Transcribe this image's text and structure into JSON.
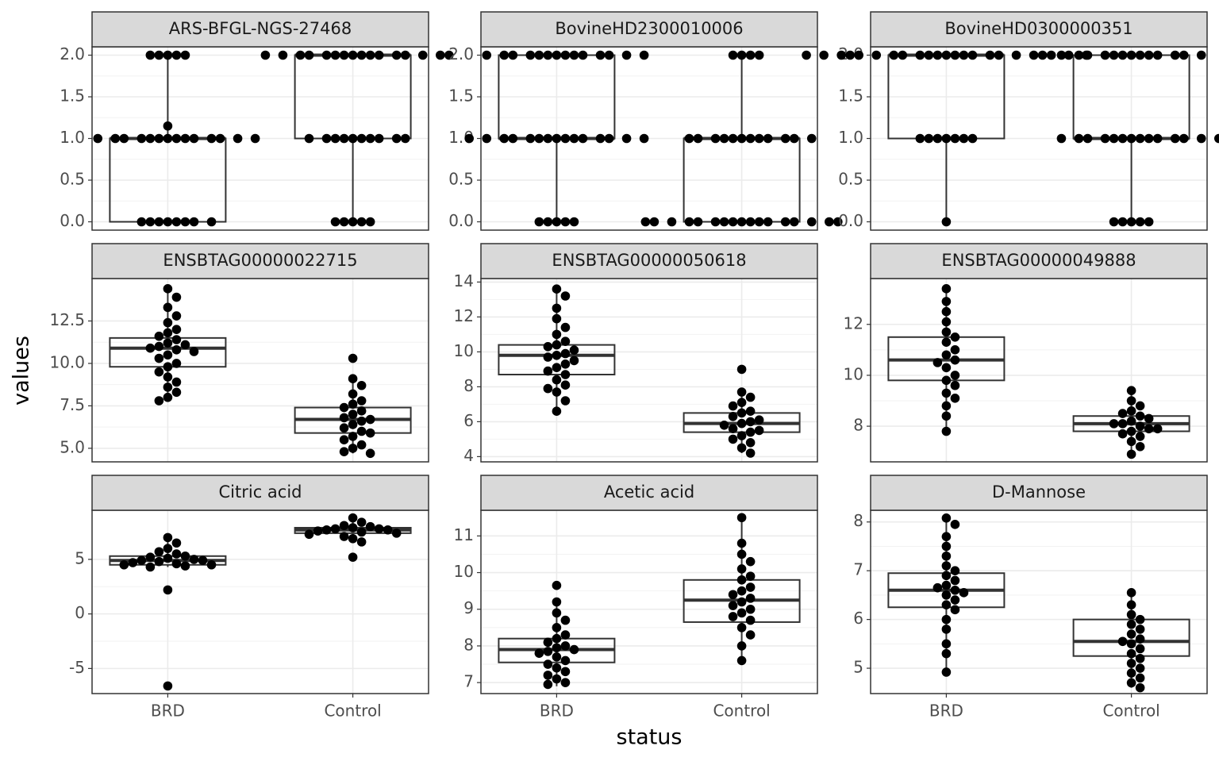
{
  "chart_data": {
    "type": "box",
    "x_label": "status",
    "y_label": "values",
    "categories": [
      "BRD",
      "Control"
    ],
    "facets": [
      {
        "title": "ARS-BFGL-NGS-27468",
        "ylim": [
          -0.1,
          2.1
        ],
        "yticks": [
          {
            "value": 0,
            "label": "0.0"
          },
          {
            "value": 0.5,
            "label": "0.5"
          },
          {
            "value": 1,
            "label": "1.0"
          },
          {
            "value": 1.5,
            "label": "1.5"
          },
          {
            "value": 2,
            "label": "2.0"
          }
        ],
        "boxes": [
          {
            "min": 0,
            "q1": 0,
            "median": 1,
            "q3": 1,
            "max": 2
          },
          {
            "min": 0,
            "q1": 1,
            "median": 2,
            "q3": 2,
            "max": 2
          }
        ],
        "points": [
          [
            2,
            2,
            2,
            2,
            2,
            1.15,
            1,
            1,
            1,
            1,
            1,
            1,
            1,
            1,
            1,
            1,
            1,
            1,
            1,
            1,
            0,
            0,
            0,
            0,
            0,
            0,
            0,
            0
          ],
          [
            2,
            2,
            2,
            2,
            2,
            2,
            2,
            2,
            2,
            2,
            2,
            2,
            2,
            2,
            2,
            2,
            1,
            1,
            1,
            1,
            1,
            1,
            1,
            1,
            1,
            1,
            0,
            0,
            0,
            0,
            0
          ]
        ]
      },
      {
        "title": "BovineHD2300010006",
        "ylim": [
          -0.1,
          2.1
        ],
        "yticks": [
          {
            "value": 0,
            "label": "0.0"
          },
          {
            "value": 0.5,
            "label": "0.5"
          },
          {
            "value": 1,
            "label": "1.0"
          },
          {
            "value": 1.5,
            "label": "1.5"
          },
          {
            "value": 2,
            "label": "2.0"
          }
        ],
        "boxes": [
          {
            "min": 0,
            "q1": 1,
            "median": 1,
            "q3": 2,
            "max": 2
          },
          {
            "min": 0,
            "q1": 0,
            "median": 1,
            "q3": 1,
            "max": 2
          }
        ],
        "points": [
          [
            2,
            2,
            2,
            2,
            2,
            2,
            2,
            2,
            2,
            2,
            2,
            2,
            2,
            2,
            1,
            1,
            1,
            1,
            1,
            1,
            1,
            1,
            1,
            1,
            1,
            1,
            1,
            1,
            1,
            0,
            0,
            0,
            0,
            0
          ],
          [
            2,
            2,
            2,
            2,
            1,
            1,
            1,
            1,
            1,
            1,
            1,
            1,
            1,
            1,
            1,
            1,
            0,
            0,
            0,
            0,
            0,
            0,
            0,
            0,
            0,
            0,
            0,
            0,
            0,
            0,
            0,
            0,
            0
          ]
        ]
      },
      {
        "title": "BovineHD0300000351",
        "ylim": [
          -0.1,
          2.1
        ],
        "yticks": [
          {
            "value": 0,
            "label": "0.0"
          },
          {
            "value": 0.5,
            "label": "0.5"
          },
          {
            "value": 1,
            "label": "1.0"
          },
          {
            "value": 1.5,
            "label": "1.5"
          },
          {
            "value": 2,
            "label": "2.0"
          }
        ],
        "boxes": [
          {
            "min": 0,
            "q1": 1,
            "median": 2,
            "q3": 2,
            "max": 2
          },
          {
            "min": 0,
            "q1": 1,
            "median": 1,
            "q3": 2,
            "max": 2
          }
        ],
        "points": [
          [
            2,
            2,
            2,
            2,
            2,
            2,
            2,
            2,
            2,
            2,
            2,
            2,
            2,
            2,
            2,
            2,
            2,
            2,
            2,
            2,
            2,
            2,
            2,
            1,
            1,
            1,
            1,
            1,
            1,
            1,
            0
          ],
          [
            2,
            2,
            2,
            2,
            2,
            2,
            2,
            2,
            2,
            2,
            2,
            2,
            2,
            1,
            1,
            1,
            1,
            1,
            1,
            1,
            1,
            1,
            1,
            1,
            1,
            1,
            1,
            0,
            0,
            0,
            0,
            0
          ]
        ]
      },
      {
        "title": "ENSBTAG00000022715",
        "ylim": [
          4.2,
          15.0
        ],
        "yticks": [
          {
            "value": 5,
            "label": "5.0"
          },
          {
            "value": 7.5,
            "label": "7.5"
          },
          {
            "value": 10,
            "label": "10.0"
          },
          {
            "value": 12.5,
            "label": "12.5"
          }
        ],
        "boxes": [
          {
            "min": 7.8,
            "q1": 9.8,
            "median": 10.9,
            "q3": 11.5,
            "max": 14.4
          },
          {
            "min": 4.7,
            "q1": 5.9,
            "median": 6.7,
            "q3": 7.4,
            "max": 9.1
          }
        ],
        "points": [
          [
            14.4,
            13.9,
            13.3,
            12.8,
            12.4,
            12.0,
            11.8,
            11.6,
            11.4,
            11.2,
            11.1,
            11.0,
            10.9,
            10.8,
            10.7,
            10.5,
            10.3,
            10.0,
            9.8,
            9.5,
            9.2,
            8.9,
            8.6,
            8.3,
            8.0,
            7.8
          ],
          [
            10.3,
            9.1,
            8.7,
            8.2,
            7.8,
            7.6,
            7.4,
            7.2,
            7.0,
            6.8,
            6.7,
            6.6,
            6.4,
            6.2,
            6.0,
            5.9,
            5.7,
            5.5,
            5.2,
            5.0,
            4.8,
            4.7
          ]
        ]
      },
      {
        "title": "ENSBTAG00000050618",
        "ylim": [
          3.7,
          14.2
        ],
        "yticks": [
          4,
          6,
          8,
          10,
          12,
          14
        ],
        "boxes": [
          {
            "min": 6.6,
            "q1": 8.7,
            "median": 9.8,
            "q3": 10.4,
            "max": 13.6
          },
          {
            "min": 4.2,
            "q1": 5.4,
            "median": 5.9,
            "q3": 6.5,
            "max": 7.7
          }
        ],
        "points": [
          [
            13.6,
            13.2,
            12.5,
            11.9,
            11.4,
            11.0,
            10.6,
            10.4,
            10.3,
            10.1,
            9.9,
            9.8,
            9.7,
            9.5,
            9.3,
            9.1,
            8.9,
            8.7,
            8.4,
            8.1,
            7.9,
            7.7,
            7.2,
            6.6
          ],
          [
            9.0,
            7.7,
            7.4,
            7.1,
            6.9,
            6.6,
            6.5,
            6.3,
            6.1,
            6.0,
            5.9,
            5.8,
            5.6,
            5.5,
            5.4,
            5.2,
            5.0,
            4.8,
            4.5,
            4.2
          ]
        ]
      },
      {
        "title": "ENSBTAG00000049888",
        "ylim": [
          6.6,
          13.8
        ],
        "yticks": [
          8,
          10,
          12
        ],
        "boxes": [
          {
            "min": 7.8,
            "q1": 9.8,
            "median": 10.6,
            "q3": 11.5,
            "max": 13.4
          },
          {
            "min": 6.9,
            "q1": 7.8,
            "median": 8.1,
            "q3": 8.4,
            "max": 9.4
          }
        ],
        "points": [
          [
            13.4,
            12.9,
            12.5,
            12.1,
            11.7,
            11.5,
            11.3,
            11.0,
            10.8,
            10.6,
            10.5,
            10.3,
            10.0,
            9.8,
            9.6,
            9.3,
            9.1,
            8.8,
            8.4,
            7.8
          ],
          [
            9.4,
            9.0,
            8.8,
            8.6,
            8.5,
            8.4,
            8.3,
            8.2,
            8.1,
            8.1,
            8.0,
            7.9,
            7.9,
            7.8,
            7.7,
            7.6,
            7.4,
            7.2,
            6.9
          ]
        ]
      },
      {
        "title": "Citric acid",
        "ylim": [
          -7.3,
          9.5
        ],
        "yticks": [
          -5,
          0,
          5
        ],
        "boxes": [
          {
            "min": 4.3,
            "q1": 4.5,
            "median": 4.9,
            "q3": 5.3,
            "max": 7.0
          },
          {
            "min": 6.6,
            "q1": 7.4,
            "median": 7.7,
            "q3": 7.9,
            "max": 8.8
          }
        ],
        "points": [
          [
            7.0,
            6.5,
            6.0,
            5.7,
            5.5,
            5.3,
            5.2,
            5.1,
            5.0,
            4.9,
            4.9,
            4.8,
            4.7,
            4.6,
            4.5,
            4.5,
            4.4,
            4.3,
            2.2,
            -6.6
          ],
          [
            8.8,
            8.4,
            8.1,
            8.0,
            7.9,
            7.8,
            7.8,
            7.7,
            7.7,
            7.6,
            7.5,
            7.4,
            7.3,
            7.1,
            6.9,
            6.6,
            5.2
          ]
        ]
      },
      {
        "title": "Acetic acid",
        "ylim": [
          6.7,
          11.7
        ],
        "yticks": [
          7,
          8,
          9,
          10,
          11
        ],
        "boxes": [
          {
            "min": 6.9,
            "q1": 7.55,
            "median": 7.9,
            "q3": 8.2,
            "max": 9.2
          },
          {
            "min": 7.6,
            "q1": 8.65,
            "median": 9.25,
            "q3": 9.8,
            "max": 11.5
          }
        ],
        "points": [
          [
            9.65,
            9.2,
            8.9,
            8.7,
            8.5,
            8.3,
            8.2,
            8.1,
            8.0,
            7.95,
            7.9,
            7.85,
            7.8,
            7.7,
            7.6,
            7.5,
            7.4,
            7.3,
            7.2,
            7.1,
            7.0,
            6.95
          ],
          [
            11.5,
            10.8,
            10.5,
            10.3,
            10.1,
            9.9,
            9.8,
            9.6,
            9.5,
            9.4,
            9.3,
            9.2,
            9.1,
            9.0,
            8.9,
            8.8,
            8.7,
            8.5,
            8.3,
            8.0,
            7.6
          ]
        ]
      },
      {
        "title": "D-Mannose",
        "ylim": [
          4.48,
          8.24
        ],
        "yticks": [
          5,
          6,
          7,
          8
        ],
        "boxes": [
          {
            "min": 4.92,
            "q1": 6.25,
            "median": 6.6,
            "q3": 6.95,
            "max": 8.08
          },
          {
            "min": 4.6,
            "q1": 5.25,
            "median": 5.55,
            "q3": 6.0,
            "max": 6.55
          }
        ],
        "points": [
          [
            8.08,
            7.95,
            7.7,
            7.5,
            7.3,
            7.1,
            7.0,
            6.9,
            6.8,
            6.7,
            6.65,
            6.6,
            6.55,
            6.5,
            6.4,
            6.3,
            6.2,
            6.0,
            5.8,
            5.5,
            5.3,
            4.92
          ],
          [
            6.55,
            6.3,
            6.1,
            6.0,
            5.9,
            5.8,
            5.7,
            5.6,
            5.55,
            5.5,
            5.4,
            5.3,
            5.2,
            5.1,
            5.0,
            4.9,
            4.8,
            4.7,
            4.6
          ]
        ]
      }
    ]
  }
}
